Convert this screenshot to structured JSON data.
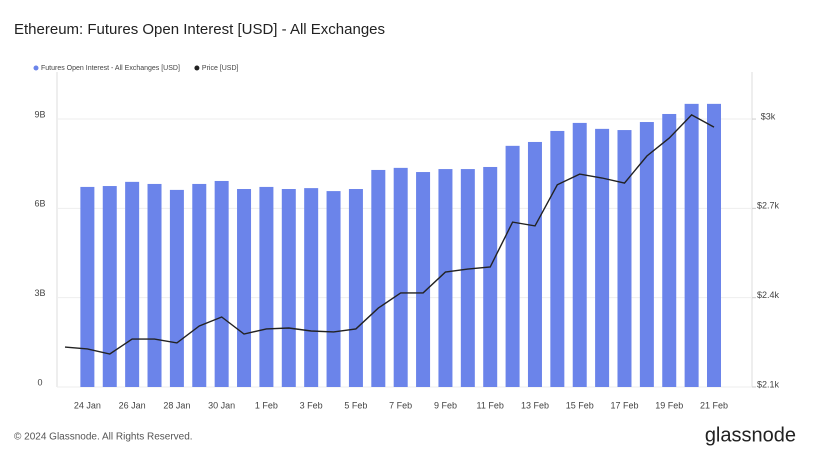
{
  "chart_data": {
    "type": "bar_line",
    "title": "Ethereum: Futures Open Interest [USD] - All Exchanges",
    "categories": [
      null,
      "24 Jan",
      null,
      "26 Jan",
      null,
      "28 Jan",
      null,
      "30 Jan",
      null,
      "1 Feb",
      null,
      "3 Feb",
      null,
      "5 Feb",
      null,
      "7 Feb",
      null,
      "9 Feb",
      null,
      "11 Feb",
      null,
      "13 Feb",
      null,
      "15 Feb",
      null,
      "17 Feb",
      null,
      "19 Feb",
      null,
      "21 Feb"
    ],
    "series": [
      {
        "name": "Futures Open Interest - All Exchanges [USD]",
        "color": "#6b84ea",
        "kind": "bar",
        "values": [
          null,
          6.72,
          6.75,
          6.89,
          6.82,
          6.62,
          6.82,
          6.92,
          6.65,
          6.72,
          6.65,
          6.68,
          6.58,
          6.65,
          7.29,
          7.36,
          7.22,
          7.32,
          7.32,
          7.39,
          8.1,
          8.23,
          8.6,
          8.87,
          8.67,
          8.63,
          8.9,
          9.17,
          9.51,
          9.51
        ]
      },
      {
        "name": "Price [USD]",
        "color": "#222222",
        "kind": "line",
        "axis": "y2",
        "values": [
          2234,
          2228,
          2211,
          2261,
          2261,
          2248,
          2305,
          2335,
          2278,
          2295,
          2298,
          2288,
          2285,
          2295,
          2365,
          2416,
          2416,
          2486,
          2496,
          2503,
          2654,
          2641,
          2779,
          2815,
          2802,
          2785,
          2876,
          2936,
          3014,
          2973
        ]
      }
    ],
    "ylim": [
      0,
      10.58
    ],
    "yticks": [
      0,
      {
        "value": 3,
        "label": "3B"
      },
      {
        "value": 6,
        "label": "6B"
      },
      {
        "value": 9,
        "label": "9B"
      }
    ],
    "y2lim": [
      2100,
      3158
    ],
    "y2ticks": [
      {
        "value": 2100,
        "label": "$2.1k"
      },
      {
        "value": 2400,
        "label": "$2.4k"
      },
      {
        "value": 2700,
        "label": "$2.7k"
      },
      {
        "value": 3000,
        "label": "$3k"
      }
    ],
    "grid": true,
    "legend": "top-left"
  },
  "copyright": "© 2024 Glassnode. All Rights Reserved.",
  "brand": "glassnode"
}
